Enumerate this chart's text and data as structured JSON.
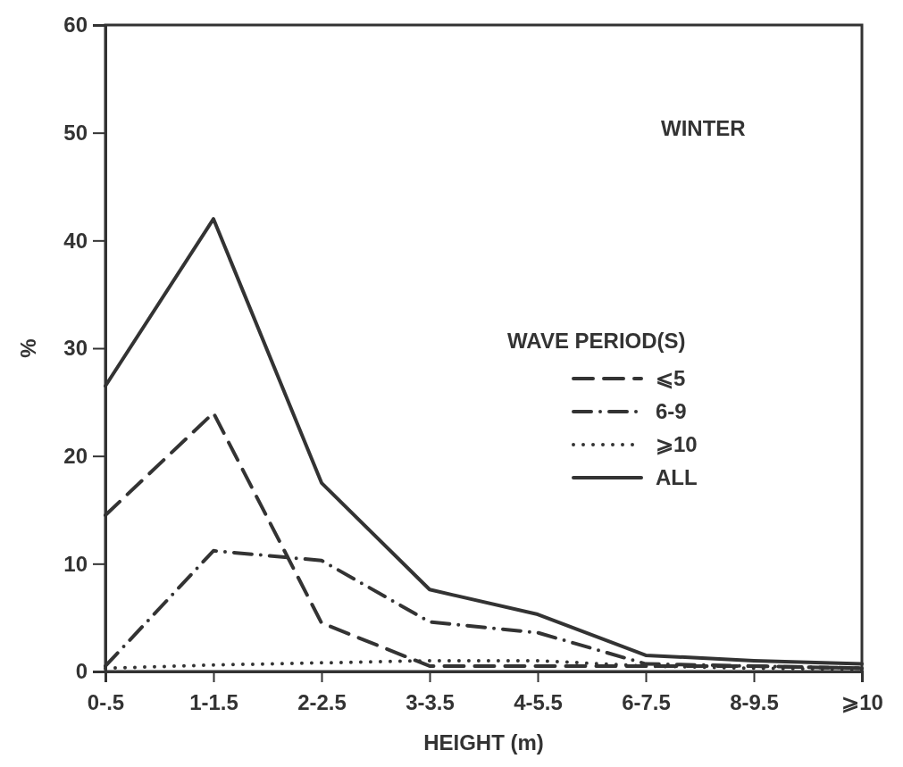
{
  "chart_data": {
    "type": "line",
    "xlabel": "HEIGHT (m)",
    "ylabel": "%",
    "legend_title": "WAVE PERIOD(S)",
    "annotations": [
      "WINTER"
    ],
    "categories": [
      "0-.5",
      "1-1.5",
      "2-2.5",
      "3-3.5",
      "4-5.5",
      "6-7.5",
      "8-9.5",
      "⩾10"
    ],
    "ylim": [
      0,
      60
    ],
    "yticks": [
      0,
      10,
      20,
      30,
      40,
      50,
      60
    ],
    "grid": false,
    "legend": "right",
    "marker": "none",
    "series": [
      {
        "name": "⩽5",
        "color": "#333333",
        "line_style": "dashed",
        "values": [
          14.5,
          24,
          4.5,
          0.5,
          0.5,
          0.5,
          0.5,
          0.3
        ]
      },
      {
        "name": "6-9",
        "color": "#333333",
        "line_style": "dashdot",
        "values": [
          0.5,
          11.2,
          10.3,
          4.6,
          3.6,
          0.7,
          0.5,
          0.3
        ]
      },
      {
        "name": "⩾10",
        "color": "#333333",
        "line_style": "dotted",
        "values": [
          0.3,
          0.6,
          0.8,
          1.0,
          1.0,
          0.5,
          0.3,
          0.2
        ]
      },
      {
        "name": "ALL",
        "color": "#333333",
        "line_style": "solid",
        "values": [
          26.5,
          42,
          17.5,
          7.6,
          5.3,
          1.5,
          1.0,
          0.7
        ]
      }
    ]
  }
}
